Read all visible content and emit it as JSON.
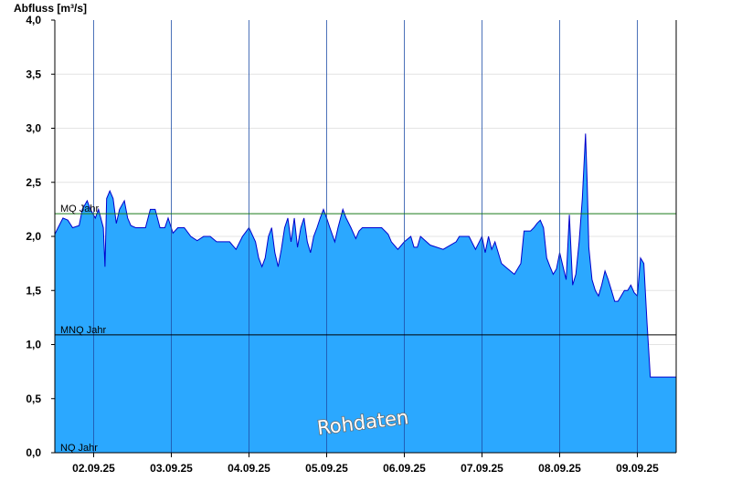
{
  "chart_data": {
    "type": "area",
    "ylabel": "Abfluss [m³/s]",
    "ylim": [
      0,
      4.0
    ],
    "xlim": [
      "2025-09-01T12:00",
      "2025-09-09T12:00"
    ],
    "y_ticks": [
      "4,0",
      "3,5",
      "3,0",
      "2,5",
      "2,0",
      "1,5",
      "1,0",
      "0,5",
      "0,0"
    ],
    "x_ticks": [
      "02.09.25",
      "03.09.25",
      "04.09.25",
      "05.09.25",
      "06.09.25",
      "07.09.25",
      "08.09.25",
      "09.09.25"
    ],
    "grid": true,
    "watermark": "Rohdaten",
    "reference_lines": [
      {
        "name": "MQ Jahr",
        "value": 2.21,
        "color": "#1a7a1a"
      },
      {
        "name": "MNQ Jahr",
        "value": 1.09,
        "color": "#000000"
      },
      {
        "name": "NQ Jahr",
        "value": 0.0,
        "color": "#000000"
      }
    ],
    "series": [
      {
        "fill_color": "#2ba8ff",
        "line_color": "#0000cc",
        "x": [
          "2025-09-01T12:00",
          "2025-09-01T13:00",
          "2025-09-01T14:30",
          "2025-09-01T16:00",
          "2025-09-01T17:30",
          "2025-09-01T19:30",
          "2025-09-01T20:30",
          "2025-09-01T22:00",
          "2025-09-01T23:00",
          "2025-09-02T00:30",
          "2025-09-02T01:30",
          "2025-09-02T03:00",
          "2025-09-02T03:30",
          "2025-09-02T04:00",
          "2025-09-02T05:00",
          "2025-09-02T06:00",
          "2025-09-02T07:00",
          "2025-09-02T08:00",
          "2025-09-02T09:30",
          "2025-09-02T10:30",
          "2025-09-02T11:30",
          "2025-09-02T13:00",
          "2025-09-02T16:00",
          "2025-09-02T17:30",
          "2025-09-02T19:00",
          "2025-09-02T20:30",
          "2025-09-02T22:00",
          "2025-09-02T23:00",
          "2025-09-03T00:30",
          "2025-09-03T02:00",
          "2025-09-03T04:00",
          "2025-09-03T06:00",
          "2025-09-03T08:00",
          "2025-09-03T10:00",
          "2025-09-03T12:00",
          "2025-09-03T14:00",
          "2025-09-03T15:00",
          "2025-09-03T16:00",
          "2025-09-03T18:00",
          "2025-09-03T20:00",
          "2025-09-03T22:00",
          "2025-09-04T00:00",
          "2025-09-04T02:00",
          "2025-09-04T03:00",
          "2025-09-04T04:00",
          "2025-09-04T05:00",
          "2025-09-04T06:00",
          "2025-09-04T07:00",
          "2025-09-04T08:00",
          "2025-09-04T09:00",
          "2025-09-04T10:00",
          "2025-09-04T11:00",
          "2025-09-04T12:00",
          "2025-09-04T13:00",
          "2025-09-04T14:00",
          "2025-09-04T15:00",
          "2025-09-04T16:00",
          "2025-09-04T17:00",
          "2025-09-04T18:00",
          "2025-09-04T19:00",
          "2025-09-04T20:00",
          "2025-09-04T21:00",
          "2025-09-04T22:00",
          "2025-09-04T23:00",
          "2025-09-05T00:00",
          "2025-09-05T01:00",
          "2025-09-05T02:30",
          "2025-09-05T03:30",
          "2025-09-05T05:00",
          "2025-09-05T06:00",
          "2025-09-05T07:30",
          "2025-09-05T09:00",
          "2025-09-05T10:00",
          "2025-09-05T11:00",
          "2025-09-05T12:00",
          "2025-09-05T14:00",
          "2025-09-05T15:00",
          "2025-09-05T16:00",
          "2025-09-05T17:00",
          "2025-09-05T19:00",
          "2025-09-05T20:00",
          "2025-09-05T22:00",
          "2025-09-06T00:00",
          "2025-09-06T02:00",
          "2025-09-06T03:00",
          "2025-09-06T04:00",
          "2025-09-06T05:00",
          "2025-09-06T08:00",
          "2025-09-06T12:00",
          "2025-09-06T16:00",
          "2025-09-06T17:00",
          "2025-09-06T18:00",
          "2025-09-06T20:00",
          "2025-09-06T22:00",
          "2025-09-07T00:00",
          "2025-09-07T01:00",
          "2025-09-07T02:00",
          "2025-09-07T03:00",
          "2025-09-07T04:00",
          "2025-09-07T06:00",
          "2025-09-07T08:00",
          "2025-09-07T10:00",
          "2025-09-07T12:00",
          "2025-09-07T13:00",
          "2025-09-07T14:00",
          "2025-09-07T15:00",
          "2025-09-07T16:00",
          "2025-09-07T17:00",
          "2025-09-07T18:00",
          "2025-09-07T19:00",
          "2025-09-07T20:00",
          "2025-09-07T21:00",
          "2025-09-07T22:00",
          "2025-09-07T23:00",
          "2025-09-08T00:00",
          "2025-09-08T02:00",
          "2025-09-08T03:00",
          "2025-09-08T04:00",
          "2025-09-08T05:00",
          "2025-09-08T06:00",
          "2025-09-08T07:00",
          "2025-09-08T08:00",
          "2025-09-08T08:30",
          "2025-09-08T09:00",
          "2025-09-08T10:00",
          "2025-09-08T11:00",
          "2025-09-08T12:00",
          "2025-09-08T13:00",
          "2025-09-08T14:00",
          "2025-09-08T15:00",
          "2025-09-08T16:00",
          "2025-09-08T17:00",
          "2025-09-08T18:00",
          "2025-09-08T19:00",
          "2025-09-08T20:00",
          "2025-09-08T21:00",
          "2025-09-08T22:00",
          "2025-09-08T23:00",
          "2025-09-09T00:00",
          "2025-09-09T01:00",
          "2025-09-09T02:00",
          "2025-09-09T03:00",
          "2025-09-09T04:00",
          "2025-09-09T05:00",
          "2025-09-09T06:00",
          "2025-09-09T07:00",
          "2025-09-09T08:00",
          "2025-09-09T09:00",
          "2025-09-09T12:00"
        ],
        "values": [
          2.02,
          2.08,
          2.17,
          2.15,
          2.08,
          2.1,
          2.25,
          2.33,
          2.25,
          2.17,
          2.25,
          2.08,
          1.72,
          2.35,
          2.42,
          2.35,
          2.12,
          2.25,
          2.33,
          2.17,
          2.1,
          2.08,
          2.08,
          2.25,
          2.25,
          2.08,
          2.08,
          2.17,
          2.03,
          2.08,
          2.08,
          2.0,
          1.96,
          2.0,
          2.0,
          1.95,
          1.95,
          1.95,
          1.95,
          1.88,
          2.0,
          2.08,
          1.95,
          1.8,
          1.72,
          1.8,
          2.0,
          2.08,
          1.85,
          1.72,
          1.88,
          2.08,
          2.17,
          1.95,
          2.17,
          1.9,
          2.08,
          2.17,
          1.95,
          1.85,
          2.0,
          2.08,
          2.17,
          2.25,
          2.17,
          2.08,
          1.95,
          2.08,
          2.25,
          2.17,
          2.08,
          1.98,
          2.05,
          2.08,
          2.08,
          2.08,
          2.08,
          2.08,
          2.08,
          2.02,
          1.95,
          1.88,
          1.95,
          2.0,
          1.9,
          1.9,
          2.0,
          1.92,
          1.88,
          1.95,
          2.0,
          2.0,
          2.0,
          1.88,
          2.0,
          1.85,
          2.0,
          1.88,
          1.95,
          1.75,
          1.7,
          1.65,
          1.75,
          2.05,
          2.05,
          2.05,
          2.08,
          2.12,
          2.15,
          2.08,
          1.8,
          1.72,
          1.65,
          1.7,
          1.85,
          1.6,
          2.2,
          1.55,
          1.65,
          1.95,
          2.35,
          2.95,
          2.5,
          1.9,
          1.6,
          1.5,
          1.45,
          1.55,
          1.68,
          1.6,
          1.5,
          1.4,
          1.4,
          1.45,
          1.5,
          1.5,
          1.55,
          1.48,
          1.45,
          1.8,
          1.75,
          1.2,
          0.7,
          0.7,
          0.7,
          0.7,
          0.7,
          0.7,
          0.7
        ]
      }
    ]
  }
}
